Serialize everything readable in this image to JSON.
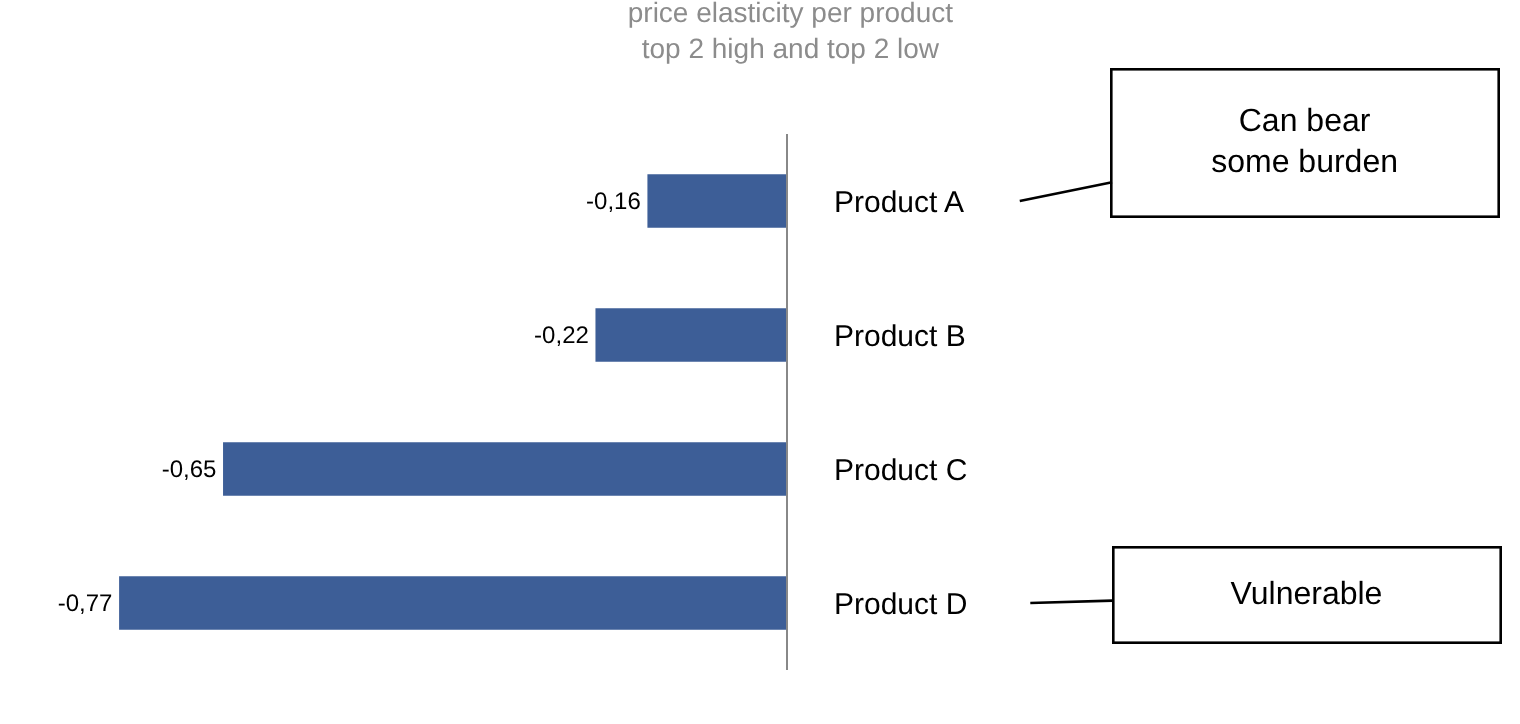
{
  "chart_data": {
    "type": "bar",
    "orientation": "horizontal",
    "title": "price elasticity per product",
    "subtitle": "top 2 high and top 2 low",
    "categories": [
      "Product A",
      "Product B",
      "Product C",
      "Product D"
    ],
    "values": [
      -0.16,
      -0.22,
      -0.65,
      -0.77
    ],
    "value_labels": [
      "-0,16",
      "-0,22",
      "-0,65",
      "-0,77"
    ],
    "color": "#3d5e97",
    "annotations": [
      "Can bear some burden",
      "Vulnerable"
    ]
  }
}
